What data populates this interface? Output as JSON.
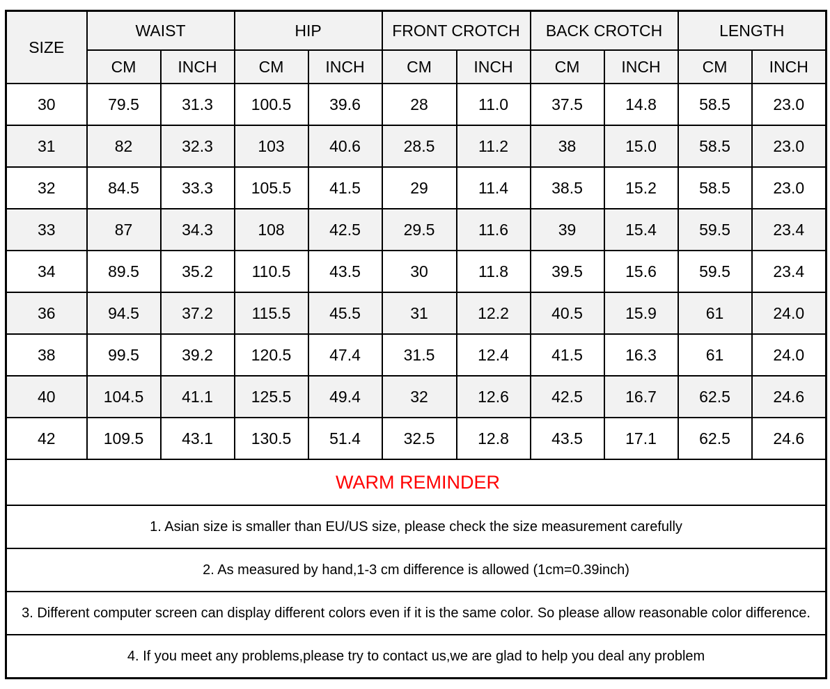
{
  "table": {
    "size_header": "SIZE",
    "groups": [
      "WAIST",
      "HIP",
      "FRONT CROTCH",
      "BACK CROTCH",
      "LENGTH"
    ],
    "subheaders": [
      "CM",
      "INCH",
      "CM",
      "INCH",
      "CM",
      "INCH",
      "CM",
      "INCH",
      "CM",
      "INCH"
    ],
    "rows": [
      [
        "30",
        "79.5",
        "31.3",
        "100.5",
        "39.6",
        "28",
        "11.0",
        "37.5",
        "14.8",
        "58.5",
        "23.0"
      ],
      [
        "31",
        "82",
        "32.3",
        "103",
        "40.6",
        "28.5",
        "11.2",
        "38",
        "15.0",
        "58.5",
        "23.0"
      ],
      [
        "32",
        "84.5",
        "33.3",
        "105.5",
        "41.5",
        "29",
        "11.4",
        "38.5",
        "15.2",
        "58.5",
        "23.0"
      ],
      [
        "33",
        "87",
        "34.3",
        "108",
        "42.5",
        "29.5",
        "11.6",
        "39",
        "15.4",
        "59.5",
        "23.4"
      ],
      [
        "34",
        "89.5",
        "35.2",
        "110.5",
        "43.5",
        "30",
        "11.8",
        "39.5",
        "15.6",
        "59.5",
        "23.4"
      ],
      [
        "36",
        "94.5",
        "37.2",
        "115.5",
        "45.5",
        "31",
        "12.2",
        "40.5",
        "15.9",
        "61",
        "24.0"
      ],
      [
        "38",
        "99.5",
        "39.2",
        "120.5",
        "47.4",
        "31.5",
        "12.4",
        "41.5",
        "16.3",
        "61",
        "24.0"
      ],
      [
        "40",
        "104.5",
        "41.1",
        "125.5",
        "49.4",
        "32",
        "12.6",
        "42.5",
        "16.7",
        "62.5",
        "24.6"
      ],
      [
        "42",
        "109.5",
        "43.1",
        "130.5",
        "51.4",
        "32.5",
        "12.8",
        "43.5",
        "17.1",
        "62.5",
        "24.6"
      ]
    ]
  },
  "reminder": {
    "title": "WARM REMINDER",
    "notes": [
      "1. Asian size is smaller than EU/US size, please check the size measurement carefully",
      "2. As measured by hand,1-3 cm difference is allowed (1cm=0.39inch)",
      "3. Different computer screen can display different colors even if it is the same color. So please allow reasonable color difference.",
      "4. If you meet any problems,please try to contact us,we are glad to help you deal any problem"
    ]
  },
  "colors": {
    "header_bg": "#f2f2f2",
    "alt_row_bg": "#f2f2f2",
    "row_bg": "#ffffff",
    "border": "#000000",
    "reminder_title": "#ff0000",
    "text": "#000000"
  }
}
